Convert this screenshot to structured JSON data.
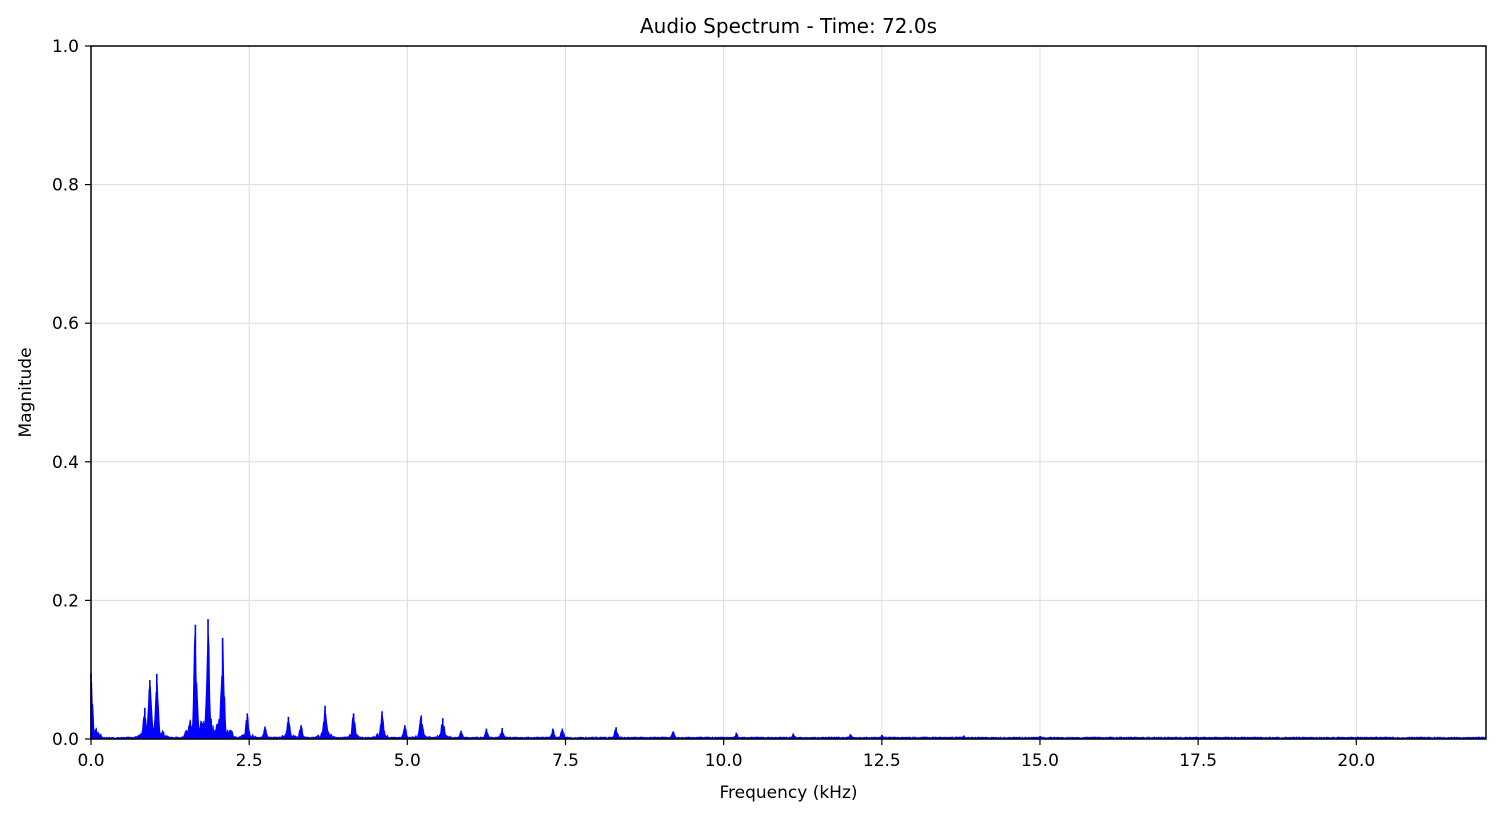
{
  "chart_data": {
    "type": "area",
    "title": "Audio Spectrum - Time: 72.0s",
    "xlabel": "Frequency (kHz)",
    "ylabel": "Magnitude",
    "xlim": [
      0,
      22.05
    ],
    "ylim": [
      0,
      1.0
    ],
    "x_ticks": [
      0.0,
      2.5,
      5.0,
      7.5,
      10.0,
      12.5,
      15.0,
      17.5,
      20.0
    ],
    "x_tick_labels": [
      "0.0",
      "2.5",
      "5.0",
      "7.5",
      "10.0",
      "12.5",
      "15.0",
      "17.5",
      "20.0"
    ],
    "y_ticks": [
      0.0,
      0.2,
      0.4,
      0.6,
      0.8,
      1.0
    ],
    "y_tick_labels": [
      "0.0",
      "0.2",
      "0.4",
      "0.6",
      "0.8",
      "1.0"
    ],
    "grid": true,
    "series": [
      {
        "color": "#0000ff",
        "fill": true,
        "peaks": [
          {
            "x": 0.0,
            "y": 0.095
          },
          {
            "x": 0.08,
            "y": 0.012
          },
          {
            "x": 0.85,
            "y": 0.045
          },
          {
            "x": 0.93,
            "y": 0.085
          },
          {
            "x": 1.04,
            "y": 0.094
          },
          {
            "x": 1.5,
            "y": 0.012
          },
          {
            "x": 1.65,
            "y": 0.165
          },
          {
            "x": 1.85,
            "y": 0.173
          },
          {
            "x": 2.0,
            "y": 0.022
          },
          {
            "x": 2.08,
            "y": 0.146
          },
          {
            "x": 2.47,
            "y": 0.037
          },
          {
            "x": 2.75,
            "y": 0.018
          },
          {
            "x": 3.12,
            "y": 0.032
          },
          {
            "x": 3.32,
            "y": 0.02
          },
          {
            "x": 3.7,
            "y": 0.048
          },
          {
            "x": 4.15,
            "y": 0.037
          },
          {
            "x": 4.6,
            "y": 0.04
          },
          {
            "x": 4.96,
            "y": 0.02
          },
          {
            "x": 5.22,
            "y": 0.034
          },
          {
            "x": 5.56,
            "y": 0.03
          },
          {
            "x": 5.85,
            "y": 0.012
          },
          {
            "x": 6.25,
            "y": 0.015
          },
          {
            "x": 6.5,
            "y": 0.016
          },
          {
            "x": 7.3,
            "y": 0.015
          },
          {
            "x": 7.45,
            "y": 0.015
          },
          {
            "x": 8.3,
            "y": 0.017
          },
          {
            "x": 9.2,
            "y": 0.011
          },
          {
            "x": 10.2,
            "y": 0.009
          },
          {
            "x": 11.1,
            "y": 0.008
          },
          {
            "x": 12.0,
            "y": 0.007
          },
          {
            "x": 12.5,
            "y": 0.006
          },
          {
            "x": 13.8,
            "y": 0.005
          },
          {
            "x": 15.0,
            "y": 0.004
          },
          {
            "x": 16.5,
            "y": 0.003
          },
          {
            "x": 19.0,
            "y": 0.003
          },
          {
            "x": 22.0,
            "y": 0.002
          }
        ]
      }
    ]
  }
}
